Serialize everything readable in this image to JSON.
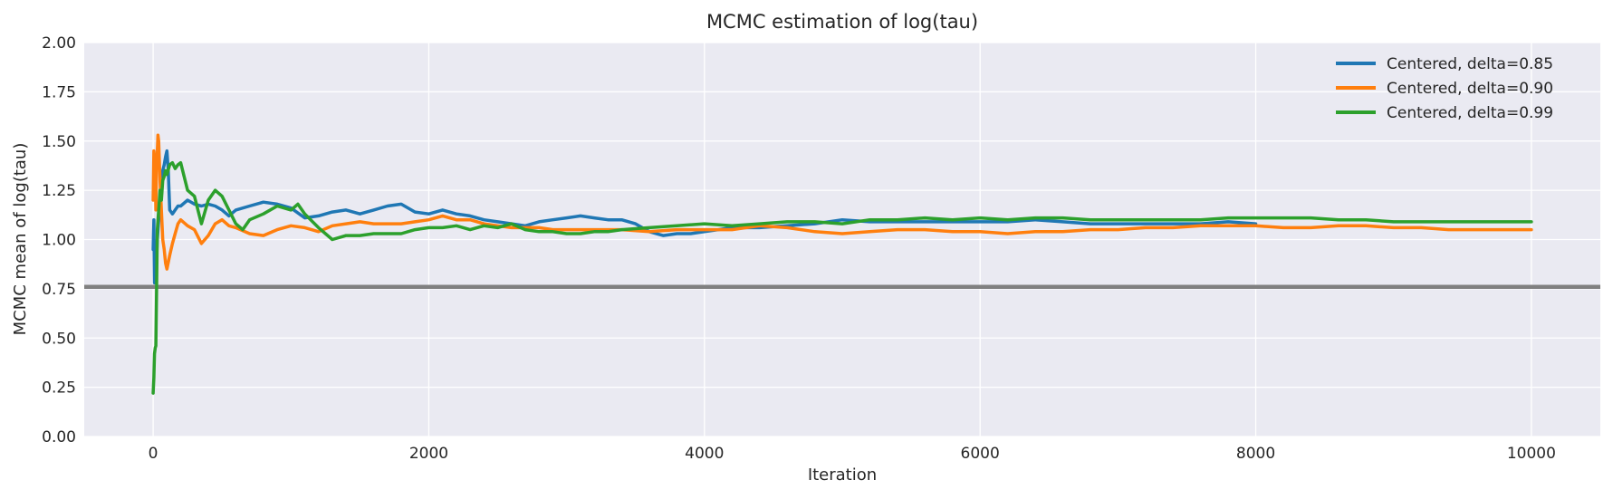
{
  "chart_data": {
    "type": "line",
    "title": "MCMC estimation of log(tau)",
    "xlabel": "Iteration",
    "ylabel": "MCMC mean of log(tau)",
    "xlim": [
      -500,
      10500
    ],
    "ylim": [
      0,
      2
    ],
    "xticks": [
      0,
      2000,
      4000,
      6000,
      8000,
      10000
    ],
    "yticks": [
      0.0,
      0.25,
      0.5,
      0.75,
      1.0,
      1.25,
      1.5,
      1.75,
      2.0
    ],
    "xtick_labels": [
      "0",
      "2000",
      "4000",
      "6000",
      "8000",
      "10000"
    ],
    "ytick_labels": [
      "0.00",
      "0.25",
      "0.50",
      "0.75",
      "1.00",
      "1.25",
      "1.50",
      "1.75",
      "2.00"
    ],
    "grid": true,
    "legend_position": "top-right",
    "reference_line": {
      "y": 0.76,
      "color": "#808080"
    },
    "series": [
      {
        "name": "Centered, delta=0.85",
        "color": "#1f77b4",
        "x": [
          0,
          5,
          10,
          20,
          30,
          40,
          50,
          60,
          70,
          80,
          90,
          100,
          110,
          120,
          140,
          160,
          180,
          200,
          250,
          300,
          350,
          400,
          450,
          500,
          550,
          600,
          700,
          800,
          900,
          1000,
          1100,
          1200,
          1300,
          1400,
          1500,
          1600,
          1700,
          1800,
          1900,
          2000,
          2100,
          2200,
          2300,
          2400,
          2500,
          2600,
          2700,
          2800,
          2900,
          3000,
          3100,
          3200,
          3300,
          3400,
          3500,
          3600,
          3700,
          3800,
          3900,
          4000,
          4200,
          4400,
          4600,
          4800,
          5000,
          5200,
          5400,
          5600,
          5800,
          6000,
          6200,
          6400,
          6600,
          6800,
          7000,
          7200,
          7400,
          7600,
          7800,
          8000
        ],
        "y": [
          0.95,
          1.1,
          0.78,
          0.8,
          1.0,
          1.1,
          1.2,
          1.3,
          1.35,
          1.38,
          1.42,
          1.45,
          1.35,
          1.15,
          1.13,
          1.15,
          1.17,
          1.17,
          1.2,
          1.18,
          1.17,
          1.18,
          1.17,
          1.15,
          1.12,
          1.15,
          1.17,
          1.19,
          1.18,
          1.16,
          1.11,
          1.12,
          1.14,
          1.15,
          1.13,
          1.15,
          1.17,
          1.18,
          1.14,
          1.13,
          1.15,
          1.13,
          1.12,
          1.1,
          1.09,
          1.08,
          1.07,
          1.09,
          1.1,
          1.11,
          1.12,
          1.11,
          1.1,
          1.1,
          1.08,
          1.04,
          1.02,
          1.03,
          1.03,
          1.04,
          1.06,
          1.06,
          1.07,
          1.08,
          1.1,
          1.09,
          1.09,
          1.09,
          1.09,
          1.09,
          1.09,
          1.1,
          1.09,
          1.08,
          1.08,
          1.08,
          1.08,
          1.08,
          1.09,
          1.08
        ]
      },
      {
        "name": "Centered, delta=0.90",
        "color": "#ff7f0e",
        "x": [
          0,
          5,
          10,
          15,
          20,
          25,
          30,
          35,
          40,
          50,
          60,
          70,
          80,
          90,
          100,
          120,
          140,
          160,
          180,
          200,
          250,
          300,
          350,
          400,
          450,
          500,
          550,
          600,
          700,
          800,
          900,
          1000,
          1100,
          1200,
          1300,
          1400,
          1500,
          1600,
          1700,
          1800,
          1900,
          2000,
          2100,
          2200,
          2300,
          2400,
          2500,
          2600,
          2700,
          2800,
          2900,
          3000,
          3200,
          3400,
          3600,
          3800,
          4000,
          4200,
          4400,
          4600,
          4800,
          5000,
          5200,
          5400,
          5600,
          5800,
          6000,
          6200,
          6400,
          6600,
          6800,
          7000,
          7200,
          7400,
          7600,
          7800,
          8000,
          8200,
          8400,
          8600,
          8800,
          9000,
          9200,
          9400,
          9600,
          9800,
          10000
        ],
        "y": [
          1.2,
          1.45,
          1.3,
          1.35,
          1.15,
          1.4,
          1.45,
          1.53,
          1.5,
          1.3,
          1.15,
          1.0,
          0.95,
          0.88,
          0.85,
          0.92,
          0.98,
          1.03,
          1.08,
          1.1,
          1.07,
          1.05,
          0.98,
          1.02,
          1.08,
          1.1,
          1.07,
          1.06,
          1.03,
          1.02,
          1.05,
          1.07,
          1.06,
          1.04,
          1.07,
          1.08,
          1.09,
          1.08,
          1.08,
          1.08,
          1.09,
          1.1,
          1.12,
          1.1,
          1.1,
          1.08,
          1.07,
          1.06,
          1.06,
          1.06,
          1.05,
          1.05,
          1.05,
          1.05,
          1.04,
          1.05,
          1.05,
          1.05,
          1.07,
          1.06,
          1.04,
          1.03,
          1.04,
          1.05,
          1.05,
          1.04,
          1.04,
          1.03,
          1.04,
          1.04,
          1.05,
          1.05,
          1.06,
          1.06,
          1.07,
          1.07,
          1.07,
          1.06,
          1.06,
          1.07,
          1.07,
          1.06,
          1.06,
          1.05,
          1.05,
          1.05,
          1.05
        ]
      },
      {
        "name": "Centered, delta=0.99",
        "color": "#2ca02c",
        "x": [
          0,
          5,
          10,
          15,
          20,
          25,
          30,
          40,
          50,
          60,
          70,
          80,
          90,
          100,
          120,
          140,
          160,
          180,
          200,
          250,
          300,
          350,
          400,
          450,
          500,
          550,
          600,
          650,
          700,
          800,
          900,
          1000,
          1050,
          1100,
          1200,
          1300,
          1400,
          1500,
          1600,
          1700,
          1800,
          1900,
          2000,
          2100,
          2200,
          2300,
          2400,
          2500,
          2600,
          2700,
          2800,
          2900,
          3000,
          3100,
          3200,
          3300,
          3400,
          3600,
          3800,
          4000,
          4200,
          4400,
          4600,
          4800,
          5000,
          5200,
          5400,
          5600,
          5800,
          6000,
          6200,
          6400,
          6600,
          6800,
          7000,
          7200,
          7400,
          7600,
          7800,
          8000,
          8200,
          8400,
          8600,
          8800,
          9000,
          9200,
          9400,
          9600,
          9800,
          10000
        ],
        "y": [
          0.22,
          0.3,
          0.42,
          0.45,
          0.46,
          0.75,
          1.05,
          1.15,
          1.25,
          1.2,
          1.3,
          1.32,
          1.35,
          1.33,
          1.38,
          1.39,
          1.36,
          1.38,
          1.39,
          1.25,
          1.22,
          1.08,
          1.2,
          1.25,
          1.22,
          1.15,
          1.08,
          1.05,
          1.1,
          1.13,
          1.17,
          1.15,
          1.18,
          1.13,
          1.06,
          1.0,
          1.02,
          1.02,
          1.03,
          1.03,
          1.03,
          1.05,
          1.06,
          1.06,
          1.07,
          1.05,
          1.07,
          1.06,
          1.08,
          1.05,
          1.04,
          1.04,
          1.03,
          1.03,
          1.04,
          1.04,
          1.05,
          1.06,
          1.07,
          1.08,
          1.07,
          1.08,
          1.09,
          1.09,
          1.08,
          1.1,
          1.1,
          1.11,
          1.1,
          1.11,
          1.1,
          1.11,
          1.11,
          1.1,
          1.1,
          1.1,
          1.1,
          1.1,
          1.11,
          1.11,
          1.11,
          1.11,
          1.1,
          1.1,
          1.09,
          1.09,
          1.09,
          1.09,
          1.09,
          1.09
        ]
      }
    ]
  },
  "colors": {
    "plot_bg": "#eaeaf2",
    "grid": "#ffffff",
    "text": "#262626"
  }
}
